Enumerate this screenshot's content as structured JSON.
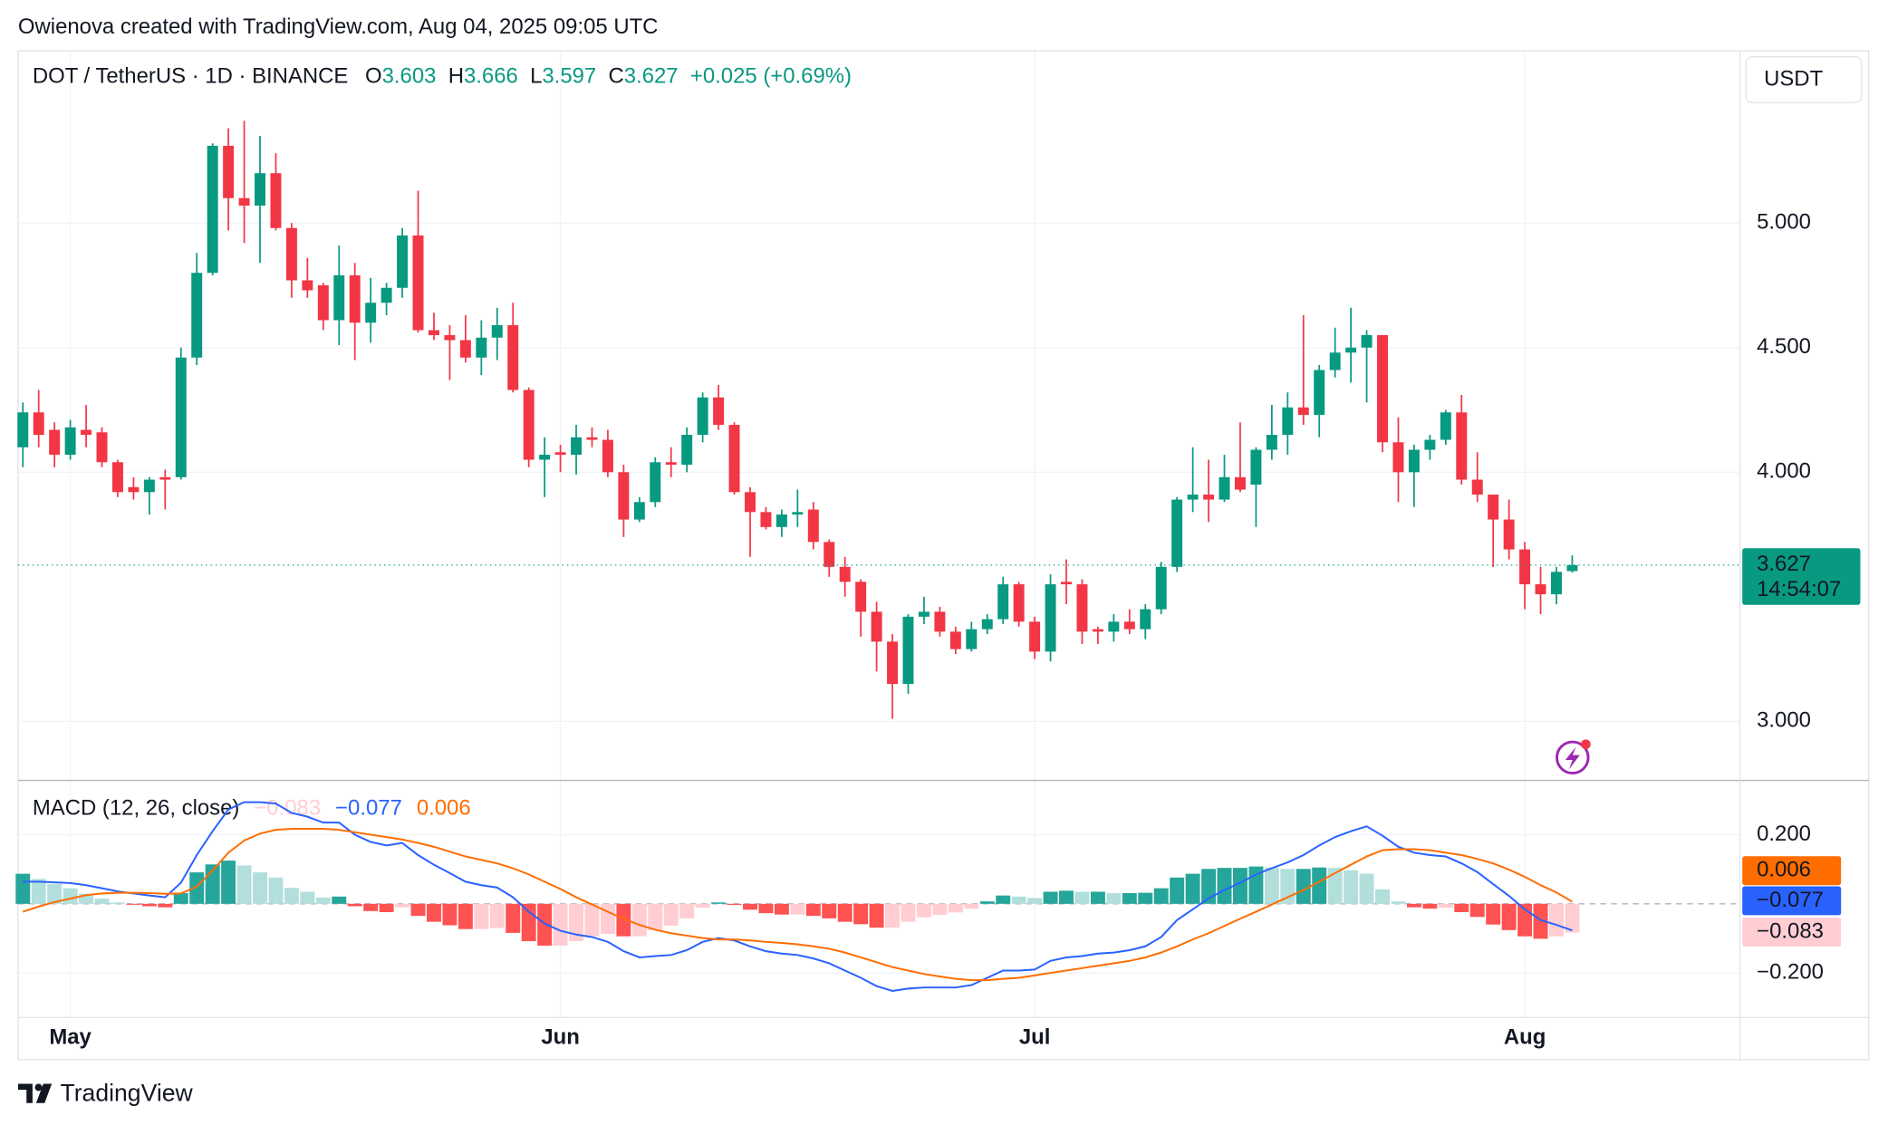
{
  "header": {
    "attribution": "Owienova created with TradingView.com, Aug 04, 2025 09:05 UTC",
    "ohlc": [
      {
        "key": "O",
        "value": "3.603"
      },
      {
        "key": "H",
        "value": "3.666"
      },
      {
        "key": "L",
        "value": "3.597"
      },
      {
        "key": "C",
        "value": "3.627"
      }
    ],
    "change": "+0.025 (+0.69%)",
    "currency": "USDT"
  },
  "footer": {
    "brand": "TradingView"
  },
  "chart_data": [
    {
      "type": "candlestick",
      "title": "DOT / TetherUS · 1D · BINANCE",
      "categories": [
        null,
        null,
        null,
        "May",
        null,
        null,
        null,
        null,
        null,
        null,
        null,
        null,
        null,
        null,
        null,
        null,
        null,
        null,
        null,
        null,
        null,
        null,
        null,
        null,
        null,
        null,
        null,
        null,
        null,
        null,
        null,
        null,
        null,
        null,
        "Jun",
        null,
        null,
        null,
        null,
        null,
        null,
        null,
        null,
        null,
        null,
        null,
        null,
        null,
        null,
        null,
        null,
        null,
        null,
        null,
        null,
        null,
        null,
        null,
        null,
        null,
        null,
        null,
        null,
        null,
        "Jul",
        null,
        null,
        null,
        null,
        null,
        null,
        null,
        null,
        null,
        null,
        null,
        null,
        null,
        null,
        null,
        null,
        null,
        null,
        null,
        null,
        null,
        null,
        null,
        null,
        null,
        null,
        null,
        null,
        null,
        null,
        "Aug",
        null,
        null,
        null
      ],
      "open": [
        4.1,
        4.24,
        4.17,
        4.07,
        4.17,
        4.16,
        4.04,
        3.94,
        3.92,
        3.98,
        3.98,
        4.46,
        4.8,
        5.31,
        5.1,
        5.07,
        5.2,
        4.98,
        4.77,
        4.75,
        4.61,
        4.79,
        4.6,
        4.68,
        4.74,
        4.95,
        4.57,
        4.55,
        4.53,
        4.46,
        4.54,
        4.59,
        4.33,
        4.05,
        4.08,
        4.07,
        4.14,
        4.13,
        4.0,
        3.81,
        3.88,
        4.04,
        4.03,
        4.15,
        4.3,
        4.19,
        3.92,
        3.84,
        3.78,
        3.83,
        3.85,
        3.72,
        3.62,
        3.56,
        3.44,
        3.32,
        3.15,
        3.42,
        3.44,
        3.36,
        3.29,
        3.37,
        3.41,
        3.55,
        3.4,
        3.28,
        3.56,
        3.55,
        3.37,
        3.36,
        3.4,
        3.37,
        3.45,
        3.62,
        3.89,
        3.91,
        3.89,
        3.98,
        3.95,
        4.09,
        4.15,
        4.26,
        4.23,
        4.41,
        4.48,
        4.5,
        4.55,
        4.12,
        4.0,
        4.09,
        4.13,
        4.24,
        3.97,
        3.91,
        3.81,
        3.69,
        3.55,
        3.51,
        3.603
      ],
      "high": [
        4.28,
        4.33,
        4.2,
        4.21,
        4.27,
        4.18,
        4.05,
        3.98,
        3.98,
        4.01,
        4.5,
        4.88,
        5.32,
        5.38,
        5.41,
        5.35,
        5.28,
        5.0,
        4.86,
        4.76,
        4.91,
        4.84,
        4.78,
        4.76,
        4.98,
        5.13,
        4.64,
        4.59,
        4.63,
        4.61,
        4.66,
        4.68,
        4.34,
        4.14,
        4.11,
        4.19,
        4.18,
        4.17,
        4.03,
        3.9,
        4.06,
        4.1,
        4.18,
        4.32,
        4.35,
        4.2,
        3.94,
        3.86,
        3.85,
        3.93,
        3.88,
        3.73,
        3.66,
        3.57,
        3.48,
        3.35,
        3.43,
        3.5,
        3.46,
        3.38,
        3.4,
        3.43,
        3.58,
        3.56,
        3.42,
        3.59,
        3.65,
        3.57,
        3.38,
        3.43,
        3.45,
        3.47,
        3.64,
        3.9,
        4.1,
        4.05,
        4.07,
        4.2,
        4.1,
        4.27,
        4.32,
        4.63,
        4.43,
        4.58,
        4.66,
        4.57,
        4.55,
        4.22,
        4.11,
        4.15,
        4.25,
        4.31,
        4.08,
        3.91,
        3.89,
        3.72,
        3.62,
        3.62,
        3.666
      ],
      "low": [
        4.02,
        4.1,
        4.02,
        4.05,
        4.1,
        4.02,
        3.9,
        3.89,
        3.83,
        3.85,
        3.97,
        4.43,
        4.79,
        4.97,
        4.92,
        4.84,
        4.97,
        4.7,
        4.7,
        4.57,
        4.51,
        4.45,
        4.52,
        4.63,
        4.7,
        4.56,
        4.53,
        4.37,
        4.44,
        4.39,
        4.45,
        4.32,
        4.02,
        3.9,
        4.0,
        3.99,
        4.1,
        3.98,
        3.74,
        3.8,
        3.86,
        3.98,
        4.0,
        4.12,
        4.17,
        3.91,
        3.66,
        3.77,
        3.74,
        3.78,
        3.69,
        3.58,
        3.5,
        3.34,
        3.2,
        3.01,
        3.11,
        3.39,
        3.34,
        3.27,
        3.28,
        3.35,
        3.39,
        3.38,
        3.25,
        3.24,
        3.47,
        3.31,
        3.31,
        3.32,
        3.35,
        3.33,
        3.43,
        3.6,
        3.84,
        3.8,
        3.88,
        3.92,
        3.78,
        4.05,
        4.07,
        4.19,
        4.14,
        4.38,
        4.36,
        4.28,
        4.08,
        3.88,
        3.86,
        4.05,
        4.11,
        3.95,
        3.88,
        3.62,
        3.65,
        3.45,
        3.43,
        3.47,
        3.597
      ],
      "close": [
        4.24,
        4.15,
        4.07,
        4.18,
        4.15,
        4.04,
        3.92,
        3.92,
        3.97,
        3.97,
        4.46,
        4.8,
        5.31,
        5.1,
        5.07,
        5.2,
        4.98,
        4.77,
        4.73,
        4.61,
        4.79,
        4.6,
        4.68,
        4.74,
        4.95,
        4.57,
        4.55,
        4.53,
        4.46,
        4.54,
        4.59,
        4.33,
        4.05,
        4.07,
        4.07,
        4.14,
        4.13,
        4.0,
        3.81,
        3.88,
        4.04,
        4.03,
        4.15,
        4.3,
        4.19,
        3.92,
        3.84,
        3.78,
        3.83,
        3.84,
        3.72,
        3.62,
        3.56,
        3.44,
        3.32,
        3.15,
        3.42,
        3.44,
        3.36,
        3.29,
        3.37,
        3.41,
        3.55,
        3.4,
        3.28,
        3.55,
        3.55,
        3.36,
        3.36,
        3.4,
        3.37,
        3.45,
        3.62,
        3.89,
        3.91,
        3.89,
        3.98,
        3.93,
        4.09,
        4.15,
        4.26,
        4.23,
        4.41,
        4.48,
        4.5,
        4.55,
        4.12,
        4.0,
        4.09,
        4.13,
        4.24,
        3.97,
        3.91,
        3.81,
        3.69,
        3.55,
        3.51,
        3.6,
        3.627
      ],
      "up_color": "#089981",
      "down_color": "#f23645",
      "ylim": [
        2.763,
        5.691
      ],
      "yticks": [
        {
          "value": 3,
          "label": "3.000"
        },
        {
          "value": 4,
          "label": "4.000"
        },
        {
          "value": 4.5,
          "label": "4.500"
        },
        {
          "value": 5,
          "label": "5.000"
        }
      ],
      "grid": true,
      "last_price_label": "3.627",
      "countdown": "14:54:07"
    },
    {
      "type": "macd",
      "title": "MACD (12, 26, close)",
      "series": [
        {
          "kind": "histogram",
          "last_label": "−0.083",
          "color": "#ffcdd2",
          "colors": {
            "grow_above": "#26a69a",
            "fall_above": "#b2dfdb",
            "grow_below": "#ffcdd2",
            "fall_below": "#ff5252"
          },
          "values": [
            0.087,
            0.072,
            0.057,
            0.045,
            0.029,
            0.015,
            0.004,
            -0.002,
            -0.007,
            -0.01,
            0.031,
            0.091,
            0.114,
            0.125,
            0.111,
            0.091,
            0.076,
            0.046,
            0.035,
            0.018,
            0.021,
            -0.007,
            -0.021,
            -0.024,
            -0.01,
            -0.035,
            -0.052,
            -0.062,
            -0.073,
            -0.073,
            -0.07,
            -0.084,
            -0.108,
            -0.121,
            -0.121,
            -0.108,
            -0.094,
            -0.087,
            -0.094,
            -0.094,
            -0.076,
            -0.063,
            -0.042,
            -0.011,
            0.004,
            -0.003,
            -0.017,
            -0.027,
            -0.031,
            -0.031,
            -0.035,
            -0.042,
            -0.052,
            -0.059,
            -0.069,
            -0.069,
            -0.052,
            -0.039,
            -0.032,
            -0.025,
            -0.014,
            0.007,
            0.024,
            0.021,
            0.017,
            0.035,
            0.038,
            0.035,
            0.035,
            0.031,
            0.031,
            0.032,
            0.045,
            0.076,
            0.087,
            0.101,
            0.104,
            0.104,
            0.108,
            0.105,
            0.101,
            0.101,
            0.105,
            0.104,
            0.097,
            0.087,
            0.042,
            0.007,
            -0.01,
            -0.014,
            -0.011,
            -0.024,
            -0.038,
            -0.06,
            -0.076,
            -0.094,
            -0.101,
            -0.094,
            -0.083
          ]
        },
        {
          "kind": "line",
          "last_label": "−0.077",
          "color": "#2962ff",
          "values": [
            0.064,
            0.064,
            0.062,
            0.06,
            0.054,
            0.045,
            0.036,
            0.03,
            0.024,
            0.019,
            0.061,
            0.141,
            0.21,
            0.273,
            0.294,
            0.294,
            0.29,
            0.263,
            0.252,
            0.235,
            0.235,
            0.2,
            0.179,
            0.169,
            0.176,
            0.141,
            0.113,
            0.089,
            0.064,
            0.054,
            0.047,
            0.019,
            -0.023,
            -0.057,
            -0.078,
            -0.089,
            -0.096,
            -0.11,
            -0.137,
            -0.155,
            -0.151,
            -0.148,
            -0.134,
            -0.11,
            -0.099,
            -0.106,
            -0.123,
            -0.137,
            -0.144,
            -0.148,
            -0.158,
            -0.172,
            -0.193,
            -0.214,
            -0.238,
            -0.252,
            -0.245,
            -0.242,
            -0.242,
            -0.242,
            -0.235,
            -0.214,
            -0.193,
            -0.193,
            -0.19,
            -0.165,
            -0.155,
            -0.151,
            -0.144,
            -0.141,
            -0.134,
            -0.123,
            -0.096,
            -0.047,
            -0.016,
            0.016,
            0.04,
            0.061,
            0.085,
            0.103,
            0.12,
            0.141,
            0.169,
            0.193,
            0.21,
            0.224,
            0.197,
            0.165,
            0.148,
            0.141,
            0.137,
            0.117,
            0.092,
            0.057,
            0.023,
            -0.016,
            -0.047,
            -0.061,
            -0.077
          ]
        },
        {
          "kind": "line",
          "last_label": "0.006",
          "color": "#ff6d00",
          "values": [
            -0.023,
            -0.008,
            0.005,
            0.015,
            0.025,
            0.03,
            0.032,
            0.032,
            0.031,
            0.029,
            0.03,
            0.05,
            0.096,
            0.148,
            0.183,
            0.203,
            0.214,
            0.217,
            0.217,
            0.217,
            0.214,
            0.207,
            0.2,
            0.193,
            0.186,
            0.176,
            0.165,
            0.151,
            0.137,
            0.127,
            0.117,
            0.103,
            0.085,
            0.064,
            0.043,
            0.019,
            -0.002,
            -0.023,
            -0.043,
            -0.061,
            -0.075,
            -0.085,
            -0.092,
            -0.099,
            -0.103,
            -0.103,
            -0.106,
            -0.11,
            -0.113,
            -0.117,
            -0.123,
            -0.13,
            -0.141,
            -0.155,
            -0.169,
            -0.183,
            -0.193,
            -0.203,
            -0.21,
            -0.217,
            -0.221,
            -0.221,
            -0.217,
            -0.214,
            -0.207,
            -0.2,
            -0.193,
            -0.186,
            -0.179,
            -0.172,
            -0.165,
            -0.155,
            -0.141,
            -0.123,
            -0.103,
            -0.085,
            -0.064,
            -0.043,
            -0.023,
            -0.002,
            0.019,
            0.04,
            0.064,
            0.089,
            0.113,
            0.137,
            0.155,
            0.158,
            0.158,
            0.155,
            0.148,
            0.141,
            0.13,
            0.117,
            0.099,
            0.078,
            0.054,
            0.033,
            0.006
          ]
        }
      ],
      "ylim": [
        -0.329,
        0.357
      ],
      "yticks": [
        {
          "value": 0.2,
          "label": "0.200"
        },
        {
          "value": -0.2,
          "label": "−0.200"
        }
      ]
    }
  ]
}
